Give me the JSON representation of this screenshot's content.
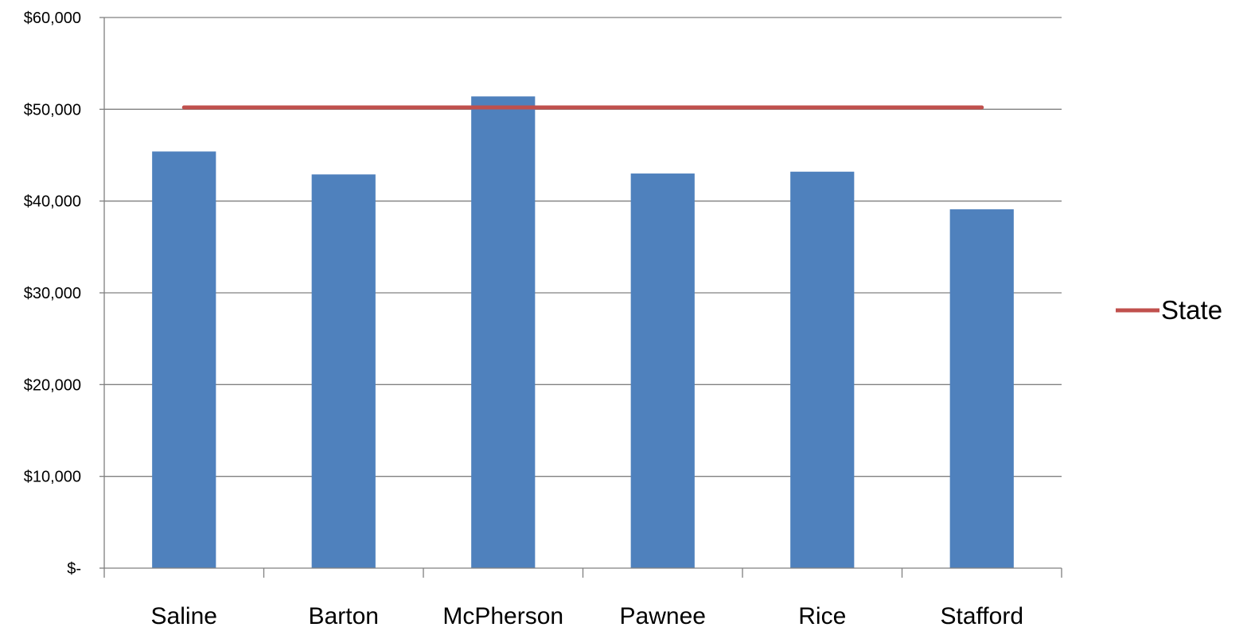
{
  "chart_data": {
    "type": "bar",
    "title": "",
    "xlabel": "",
    "ylabel": "",
    "categories": [
      "Saline",
      "Barton",
      "McPherson",
      "Pawnee",
      "Rice",
      "Stafford"
    ],
    "series": [
      {
        "type": "bar",
        "values": [
          45400,
          42900,
          51400,
          43000,
          43200,
          39100
        ],
        "color": "#4f81bd"
      },
      {
        "name": "State",
        "type": "line",
        "values": [
          50200,
          50200,
          50200,
          50200,
          50200,
          50200
        ],
        "color": "#c0504d"
      }
    ],
    "ylim": [
      0,
      60000
    ],
    "yticks": [
      0,
      10000,
      20000,
      30000,
      40000,
      50000,
      60000
    ],
    "ytick_labels": [
      "$-",
      "$10,000",
      "$20,000",
      "$30,000",
      "$40,000",
      "$50,000",
      "$60,000"
    ],
    "grid": true,
    "legend": {
      "position": "right",
      "entries": [
        "State"
      ]
    },
    "colors": {
      "gridline": "#808080",
      "axis": "#808080"
    }
  }
}
